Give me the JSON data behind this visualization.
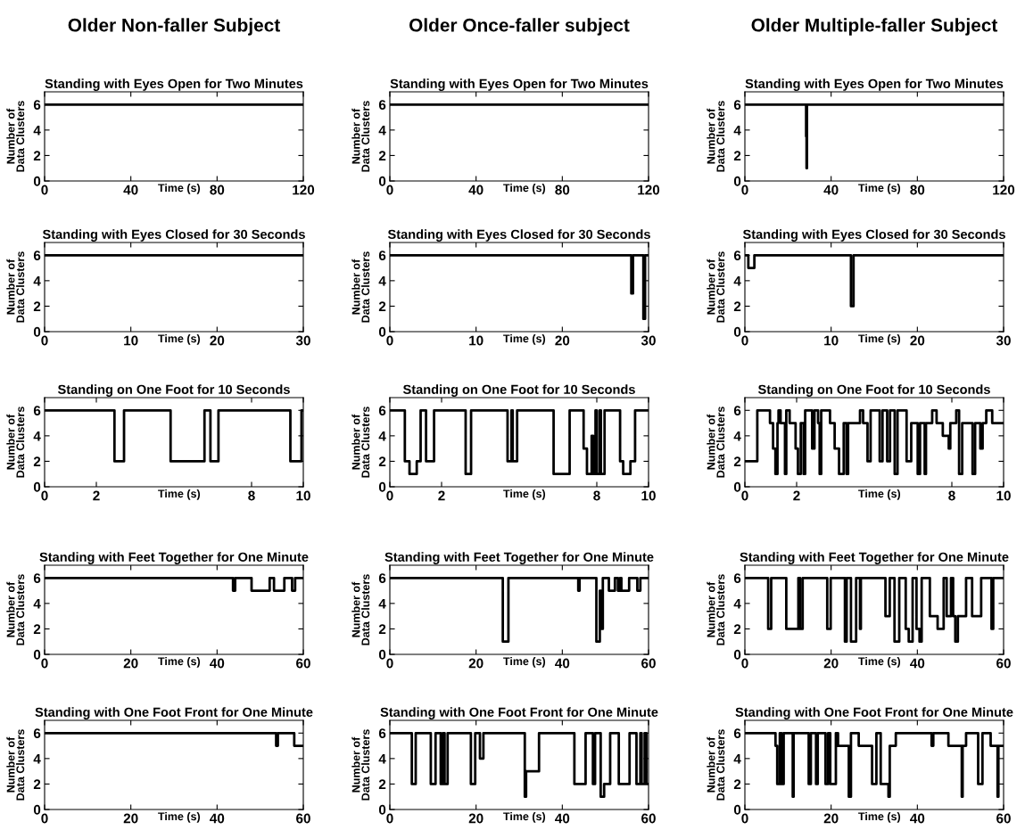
{
  "chart_data": [
    {
      "type": "step",
      "subtitle": "Older Non-faller Subject",
      "title": "Standing with Eyes Open for Two Minutes",
      "xlabel": "Time (s)",
      "ylabel": "Number of\nData Clusters",
      "xlim": [
        0,
        120
      ],
      "xticks": [
        0,
        40,
        80,
        120
      ],
      "ylim": [
        0,
        7
      ],
      "yticks": [
        0,
        2,
        4,
        6
      ],
      "color": "#000000",
      "x": [
        0,
        120
      ],
      "values": [
        6,
        6
      ]
    },
    {
      "type": "step",
      "subtitle": "Older Once-faller subject",
      "title": "Standing with Eyes Open for Two Minutes",
      "xlabel": "Time (s)",
      "ylabel": "Number of\nData Clusters",
      "xlim": [
        0,
        120
      ],
      "xticks": [
        0,
        40,
        80,
        120
      ],
      "ylim": [
        0,
        7
      ],
      "yticks": [
        0,
        2,
        4,
        6
      ],
      "color": "#000000",
      "x": [
        0,
        120
      ],
      "values": [
        6,
        6
      ]
    },
    {
      "type": "step",
      "subtitle": "Older Multiple-faller Subject",
      "title": "Standing with Eyes Open for Two Minutes",
      "xlabel": "Time (s)",
      "ylabel": "Number of\nData Clusters",
      "xlim": [
        0,
        120
      ],
      "xticks": [
        0,
        40,
        80,
        120
      ],
      "ylim": [
        0,
        7
      ],
      "yticks": [
        0,
        2,
        4,
        6
      ],
      "color": "#000000",
      "x": [
        0,
        28.4,
        28.6,
        28.8,
        120
      ],
      "values": [
        6,
        3.5,
        1,
        6,
        6
      ]
    },
    {
      "type": "step",
      "title": "Standing with Eyes Closed for 30 Seconds",
      "xlabel": "Time (s)",
      "ylabel": "Number of\nData Clusters",
      "xlim": [
        0,
        30
      ],
      "xticks": [
        0,
        10,
        20,
        30
      ],
      "ylim": [
        0,
        7
      ],
      "yticks": [
        0,
        2,
        4,
        6
      ],
      "color": "#000000",
      "x": [
        0,
        30
      ],
      "values": [
        6,
        6
      ]
    },
    {
      "type": "step",
      "title": "Standing with Eyes Closed for 30 Seconds",
      "xlabel": "Time (s)",
      "ylabel": "Number of\nData Clusters",
      "xlim": [
        0,
        30
      ],
      "xticks": [
        0,
        10,
        20,
        30
      ],
      "ylim": [
        0,
        7
      ],
      "yticks": [
        0,
        2,
        4,
        6
      ],
      "color": "#000000",
      "x": [
        0,
        28,
        28.2,
        29.4,
        29.6,
        30
      ],
      "values": [
        6,
        3,
        6,
        1,
        6,
        6
      ]
    },
    {
      "type": "step",
      "title": "Standing with Eyes Closed for 30 Seconds",
      "xlabel": "Time (s)",
      "ylabel": "Number of\nData Clusters",
      "xlim": [
        0,
        30
      ],
      "xticks": [
        0,
        10,
        20,
        30
      ],
      "ylim": [
        0,
        7
      ],
      "yticks": [
        0,
        2,
        4,
        6
      ],
      "color": "#000000",
      "x": [
        0,
        0.4,
        1.1,
        12.3,
        12.6,
        30
      ],
      "values": [
        6,
        5,
        6,
        2,
        6,
        6
      ]
    },
    {
      "type": "step",
      "title": "Standing on One Foot for 10 Seconds",
      "xlabel": "Time (s)",
      "ylabel": "Number of\nData Clusters",
      "xlim": [
        0,
        10
      ],
      "xticks": [
        0,
        2,
        8,
        10
      ],
      "ylim": [
        0,
        7
      ],
      "yticks": [
        0,
        2,
        4,
        6
      ],
      "color": "#000000",
      "x": [
        0,
        2.7,
        3.07,
        4.87,
        6.18,
        6.41,
        6.72,
        9.5,
        9.93,
        10
      ],
      "values": [
        6,
        2,
        6,
        2,
        6,
        2,
        6,
        2,
        6,
        6
      ]
    },
    {
      "type": "step",
      "title": "Standing on One Foot for 10 Seconds",
      "xlabel": "Time (s)",
      "ylabel": "Number of\nData Clusters",
      "xlim": [
        0,
        10
      ],
      "xticks": [
        0,
        2,
        8,
        10
      ],
      "ylim": [
        0,
        7
      ],
      "yticks": [
        0,
        2,
        4,
        6
      ],
      "color": "#000000",
      "x": [
        0,
        0.58,
        0.76,
        1.04,
        1.19,
        1.4,
        1.71,
        2.93,
        3.14,
        4.55,
        4.7,
        4.75,
        4.92,
        6.33,
        6.95,
        7.49,
        7.62,
        7.8,
        7.86,
        7.95,
        8.0,
        8.11,
        8.16,
        8.3,
        8.9,
        9.02,
        9.3,
        9.48,
        10
      ],
      "values": [
        6,
        2,
        1,
        2,
        6,
        2,
        6,
        1,
        6,
        2,
        6,
        2,
        6,
        1,
        6,
        3,
        1,
        4,
        1,
        6,
        1,
        6,
        1,
        6,
        2,
        1,
        2,
        6,
        6
      ]
    },
    {
      "type": "step",
      "title": "Standing on One Foot for 10 Seconds",
      "xlabel": "Time (s)",
      "ylabel": "Number of\nData Clusters",
      "xlim": [
        0,
        10
      ],
      "xticks": [
        0,
        2,
        8,
        10
      ],
      "ylim": [
        0,
        7
      ],
      "yticks": [
        0,
        2,
        4,
        6
      ],
      "color": "#000000",
      "x": [
        0,
        0.48,
        0.97,
        1.09,
        1.18,
        1.26,
        1.3,
        1.38,
        1.55,
        1.6,
        1.73,
        1.96,
        2.05,
        2.16,
        2.27,
        2.33,
        2.6,
        2.69,
        2.83,
        2.89,
        2.95,
        3.29,
        3.47,
        3.64,
        3.82,
        3.93,
        3.99,
        4.45,
        4.57,
        4.74,
        4.86,
        5.21,
        5.32,
        5.5,
        5.61,
        5.79,
        5.9,
        6.25,
        6.43,
        6.68,
        6.77,
        6.95,
        7.0,
        7.24,
        7.41,
        7.65,
        7.88,
        7.94,
        8.17,
        8.28,
        8.4,
        8.8,
        8.9,
        9.1,
        9.19,
        9.33,
        9.56,
        10
      ],
      "values": [
        2,
        6,
        5,
        3,
        1,
        5,
        6,
        5,
        1,
        6,
        5,
        3,
        1,
        5,
        1,
        6,
        3,
        6,
        5,
        1,
        6,
        5,
        3,
        1,
        5,
        1,
        5,
        6,
        5,
        2,
        6,
        2,
        6,
        2,
        6,
        1,
        6,
        2,
        5,
        1,
        5,
        1,
        5,
        6,
        5,
        4,
        3,
        5,
        6,
        1,
        5,
        1,
        5,
        3,
        5,
        6,
        5,
        5
      ]
    },
    {
      "type": "step",
      "title": "Standing with Feet Together for One Minute",
      "xlabel": "Time (s)",
      "ylabel": "Number of\nData Clusters",
      "xlim": [
        0,
        60
      ],
      "xticks": [
        0,
        20,
        40,
        60
      ],
      "ylim": [
        0,
        7
      ],
      "yticks": [
        0,
        2,
        4,
        6
      ],
      "color": "#000000",
      "x": [
        0,
        43.7,
        44.2,
        48,
        52.2,
        53.2,
        55.6,
        57.4,
        58.1,
        60
      ],
      "values": [
        6,
        5,
        6,
        5,
        6,
        5,
        6,
        5,
        6,
        6
      ]
    },
    {
      "type": "step",
      "title": "Standing with Feet Together for One Minute",
      "xlabel": "Time (s)",
      "ylabel": "Number of\nData Clusters",
      "xlim": [
        0,
        60
      ],
      "xticks": [
        0,
        20,
        40,
        60
      ],
      "ylim": [
        0,
        7
      ],
      "yticks": [
        0,
        2,
        4,
        6
      ],
      "color": "#000000",
      "x": [
        0,
        26.2,
        27.5,
        43.7,
        44,
        47.9,
        48.7,
        49,
        49.4,
        50.8,
        52.2,
        52.9,
        53.4,
        53.7,
        55.5,
        57.4,
        58.1,
        60
      ],
      "values": [
        6,
        1,
        6,
        5,
        6,
        1,
        5,
        2,
        6,
        5,
        6,
        5,
        6,
        5,
        6,
        5,
        6,
        6
      ]
    },
    {
      "type": "step",
      "title": "Standing with Feet Together for One Minute",
      "xlabel": "Time (s)",
      "ylabel": "Number of\nData Clusters",
      "xlim": [
        0,
        60
      ],
      "xticks": [
        0,
        20,
        40,
        60
      ],
      "ylim": [
        0,
        7
      ],
      "yticks": [
        0,
        2,
        4,
        6
      ],
      "color": "#000000",
      "x": [
        0,
        5.4,
        6.1,
        9.6,
        12.4,
        12.8,
        13.4,
        19.1,
        19.9,
        23.2,
        23.6,
        24.6,
        25.8,
        26.7,
        26.9,
        32.6,
        33.6,
        34.7,
        35.8,
        37.3,
        38,
        38.9,
        39.8,
        40.5,
        41,
        42.9,
        44.7,
        46.1,
        46.8,
        47.8,
        48.3,
        48.8,
        49.4,
        51.3,
        52.7,
        54.8,
        57.2,
        57.6,
        60
      ],
      "values": [
        6,
        2,
        6,
        2,
        6,
        2,
        6,
        2,
        6,
        1,
        6,
        1,
        6,
        2,
        6,
        3,
        6,
        1,
        6,
        2,
        1,
        6,
        2,
        1,
        6,
        3,
        2,
        6,
        3,
        6,
        3,
        1,
        3,
        6,
        3,
        6,
        2,
        6,
        6
      ]
    },
    {
      "type": "step",
      "title": "Standing with One Foot Front for One Minute",
      "xlabel": "Time (s)",
      "ylabel": "Number of\nData Clusters",
      "xlim": [
        0,
        60
      ],
      "xticks": [
        0,
        20,
        40,
        60
      ],
      "ylim": [
        0,
        7
      ],
      "yticks": [
        0,
        2,
        4,
        6
      ],
      "color": "#000000",
      "x": [
        0,
        53.7,
        54.1,
        57.9,
        60
      ],
      "values": [
        6,
        5,
        6,
        5,
        5
      ]
    },
    {
      "type": "step",
      "title": "Standing with One Foot Front for One Minute",
      "xlabel": "Time (s)",
      "ylabel": "Number of\nData Clusters",
      "xlim": [
        0,
        60
      ],
      "xticks": [
        0,
        20,
        40,
        60
      ],
      "ylim": [
        0,
        7
      ],
      "yticks": [
        0,
        2,
        4,
        6
      ],
      "color": "#000000",
      "x": [
        0,
        5.1,
        6.0,
        9.5,
        10.6,
        11.8,
        12.3,
        12.7,
        13.4,
        18.8,
        19.8,
        20.9,
        21.7,
        31.3,
        31.6,
        34.6,
        42.8,
        45.4,
        47.1,
        47.6,
        48.9,
        49.7,
        51.1,
        53.1,
        55.6,
        57.2,
        58.1,
        58.4,
        59.1,
        59.5,
        60
      ],
      "values": [
        6,
        2,
        6,
        2,
        6,
        2,
        6,
        2,
        6,
        2,
        6,
        4,
        6,
        1,
        3,
        6,
        2,
        6,
        2,
        6,
        1,
        2,
        6,
        2,
        6,
        2,
        6,
        2,
        6,
        2,
        2
      ]
    },
    {
      "type": "step",
      "title": "Standing with One Foot Front for One Minute",
      "xlabel": "Time (s)",
      "ylabel": "Number of\nData Clusters",
      "xlim": [
        0,
        60
      ],
      "xticks": [
        0,
        20,
        40,
        60
      ],
      "ylim": [
        0,
        7
      ],
      "yticks": [
        0,
        2,
        4,
        6
      ],
      "color": "#000000",
      "x": [
        0,
        7.1,
        7.5,
        8.1,
        8.5,
        9.0,
        11.1,
        11.3,
        14.8,
        15.3,
        16.5,
        16.9,
        18.7,
        19.3,
        19.8,
        21.1,
        21.6,
        24.1,
        24.6,
        26.4,
        29.5,
        30.5,
        31.5,
        33.3,
        33.6,
        35,
        43.3,
        43.7,
        47.2,
        50.3,
        50.5,
        51.3,
        54.1,
        55.1,
        57,
        58.6,
        58.8,
        60
      ],
      "values": [
        6,
        5,
        2,
        6,
        2,
        6,
        1,
        6,
        2,
        6,
        2,
        6,
        2,
        6,
        2,
        6,
        5,
        1,
        6,
        5,
        2,
        6,
        2,
        1,
        5,
        6,
        5,
        6,
        5,
        1,
        5,
        6,
        2,
        6,
        5,
        1,
        5,
        5
      ]
    }
  ]
}
